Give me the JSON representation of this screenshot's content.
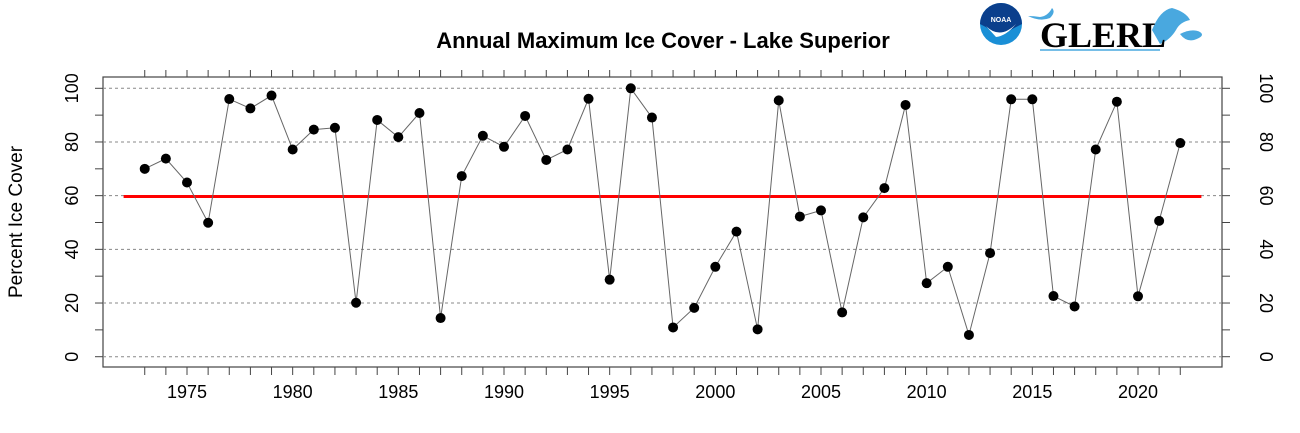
{
  "logo": {
    "agency": "NOAA",
    "lab": "GLERL"
  },
  "chart_data": {
    "type": "line",
    "title": "Annual Maximum Ice Cover - Lake Superior",
    "xlabel": "",
    "ylabel": "Percent Ice Cover",
    "xlim": [
      1972,
      2023
    ],
    "ylim": [
      0,
      100
    ],
    "x_ticks": [
      1975,
      1980,
      1985,
      1990,
      1995,
      2000,
      2005,
      2010,
      2015,
      2020
    ],
    "y_ticks": [
      0,
      20,
      40,
      60,
      80,
      100
    ],
    "grid": "horizontal dashed",
    "series": [
      {
        "x": [
          1973,
          1974,
          1975,
          1976,
          1977,
          1978,
          1979,
          1980,
          1981,
          1982,
          1983,
          1984,
          1985,
          1986,
          1987,
          1988,
          1989,
          1990,
          1991,
          1992,
          1993,
          1994,
          1995,
          1996,
          1997,
          1998,
          1999,
          2000,
          2001,
          2002,
          2003,
          2004,
          2005,
          2006,
          2007,
          2008,
          2009,
          2010,
          2011,
          2012,
          2013,
          2014,
          2015,
          2016,
          2017,
          2018,
          2019,
          2020,
          2021,
          2022
        ],
        "values": [
          70,
          73.8,
          64.9,
          49.9,
          96,
          92.5,
          97.3,
          77.2,
          84.6,
          85.3,
          20.1,
          88.2,
          81.8,
          90.8,
          14.4,
          67.3,
          82.3,
          78.2,
          89.7,
          73.3,
          77.2,
          96.1,
          28.7,
          100,
          89.1,
          10.9,
          18.2,
          33.5,
          46.6,
          10.2,
          95.5,
          52.2,
          54.5,
          16.5,
          51.9,
          62.8,
          93.8,
          27.4,
          33.5,
          8.1,
          38.6,
          95.9,
          95.9,
          22.6,
          18.7,
          77.2,
          95,
          22.5,
          50.6,
          79.6
        ],
        "color": "#000000"
      }
    ],
    "reference_line": {
      "value": 59.7,
      "color": "#ff0000"
    }
  }
}
